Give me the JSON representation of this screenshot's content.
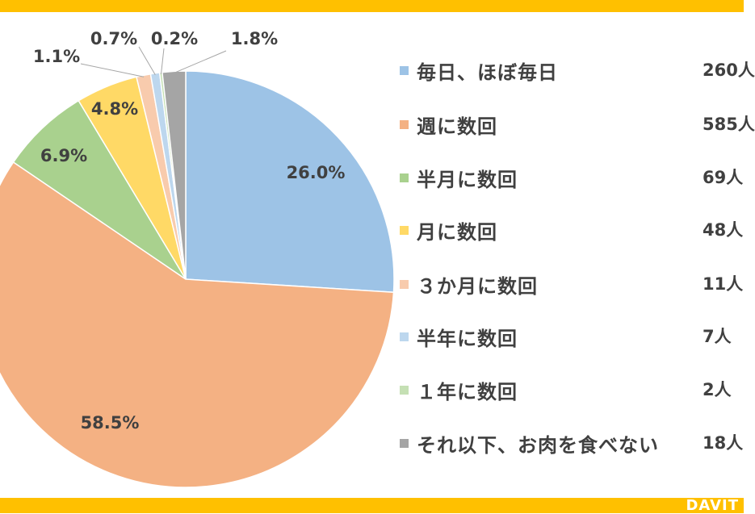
{
  "colors": {
    "band": "#FFC000",
    "border": "#ffffff",
    "text": "#404040",
    "leader": "#a6a6a6"
  },
  "chart_data": {
    "type": "pie",
    "start": "12 o'clock, clockwise",
    "categories": [
      "毎日、ほぼ毎日",
      "週に数回",
      "半月に数回",
      "月に数回",
      "３か月に数回",
      "半年に数回",
      "１年に数回",
      "それ以下、お肉を食べない"
    ],
    "values": [
      26.0,
      58.5,
      6.9,
      4.8,
      1.1,
      0.7,
      0.2,
      1.8
    ],
    "labels": [
      "26.0%",
      "58.5%",
      "6.9%",
      "4.8%",
      "1.1%",
      "0.7%",
      "0.2%",
      "1.8%"
    ],
    "counts": [
      "260人",
      "585人",
      "69人",
      "48人",
      "11人",
      "7人",
      "2人",
      "18人"
    ],
    "slice_colors": [
      "#9DC3E6",
      "#F4B183",
      "#A9D18E",
      "#FFD966",
      "#F8CBAD",
      "#BDD7EE",
      "#C5E0B4",
      "#A5A5A5"
    ],
    "legend_position": "right"
  },
  "brand": {
    "logo_text": "DAVIT"
  }
}
